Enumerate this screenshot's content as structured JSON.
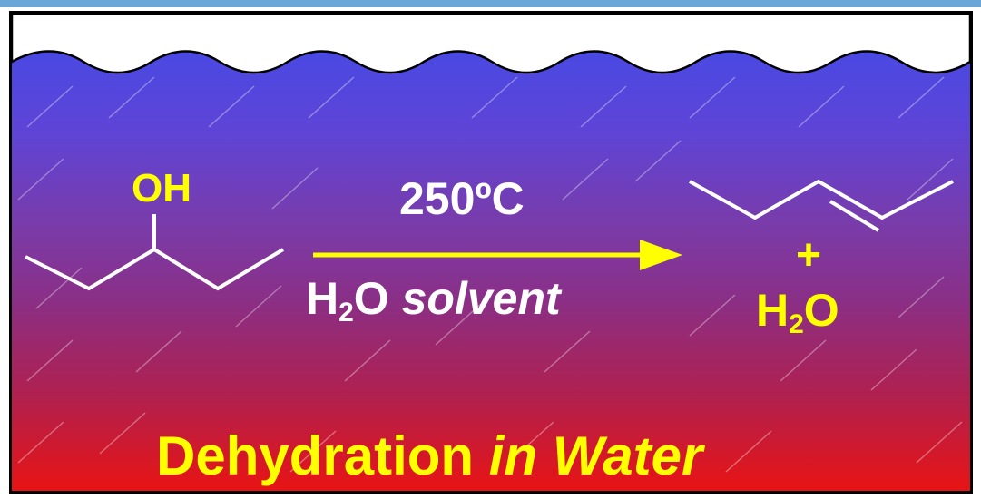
{
  "reactant": {
    "label": "OH"
  },
  "conditions": {
    "temperature": "250ºC",
    "solvent_h": "H",
    "solvent_sub": "2",
    "solvent_o": "O",
    "solvent_word": "solvent"
  },
  "products": {
    "plus": "+",
    "water_h": "H",
    "water_sub": "2",
    "water_o": "O"
  },
  "caption": {
    "main": "Dehydration",
    "italic": "in Water"
  },
  "colors": {
    "background_top": "#3f4be8",
    "background_bottom": "#e81414",
    "accent_yellow": "#ffff00",
    "text_white": "#ffffff"
  }
}
